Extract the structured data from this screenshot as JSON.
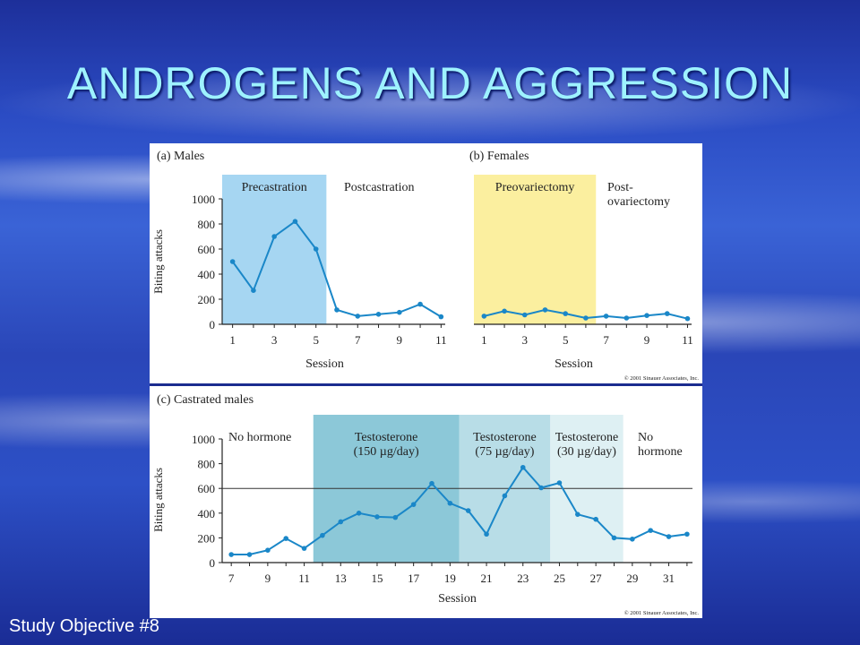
{
  "slide": {
    "title": "ANDROGENS AND AGGRESSION",
    "footer": "Study Objective #8",
    "copyright": "© 2001 Sinauer Associates, Inc."
  },
  "colors": {
    "line": "#1a87c8",
    "precastration_band": "#a6d6f2",
    "preovariectomy_band": "#fbef9f",
    "testosterone150_band": "#8cc8d8",
    "testosterone75_band": "#b8dde7",
    "testosterone30_band": "#def0f3"
  },
  "chart_data": [
    {
      "type": "line",
      "panel_label": "(a)",
      "title": "Males",
      "xlabel": "Session",
      "ylabel": "Biting attacks",
      "x": [
        1,
        2,
        3,
        4,
        5,
        6,
        7,
        8,
        9,
        10,
        11
      ],
      "values": [
        500,
        270,
        700,
        820,
        600,
        115,
        65,
        80,
        95,
        160,
        60
      ],
      "xlim": [
        0.5,
        11.2
      ],
      "ylim": [
        0,
        1000
      ],
      "xticks": [
        1,
        3,
        5,
        7,
        9,
        11
      ],
      "yticks": [
        0,
        200,
        400,
        600,
        800,
        1000
      ],
      "bands": [
        {
          "label": "Precastration",
          "from": 0.5,
          "to": 5.5,
          "color": "#a6d6f2"
        }
      ],
      "region_labels": [
        "Postcastration"
      ]
    },
    {
      "type": "line",
      "panel_label": "(b)",
      "title": "Females",
      "xlabel": "Session",
      "ylabel": "",
      "x": [
        1,
        2,
        3,
        4,
        5,
        6,
        7,
        8,
        9,
        10,
        11
      ],
      "values": [
        65,
        105,
        75,
        115,
        85,
        50,
        65,
        50,
        70,
        85,
        45
      ],
      "xlim": [
        0.5,
        11.2
      ],
      "ylim": [
        0,
        1000
      ],
      "xticks": [
        1,
        3,
        5,
        7,
        9,
        11
      ],
      "yticks": [],
      "bands": [
        {
          "label": "Preovariectomy",
          "from": 0.5,
          "to": 6.5,
          "color": "#fbef9f"
        }
      ],
      "region_labels": [
        "Post-",
        "ovariectomy"
      ]
    },
    {
      "type": "line",
      "panel_label": "(c)",
      "title": "Castrated males",
      "xlabel": "Session",
      "ylabel": "Biting attacks",
      "x": [
        7,
        8,
        9,
        10,
        11,
        12,
        13,
        14,
        15,
        16,
        17,
        18,
        19,
        20,
        21,
        22,
        23,
        24,
        25,
        26,
        27,
        28,
        29,
        30,
        31,
        32
      ],
      "values": [
        65,
        65,
        100,
        195,
        115,
        220,
        330,
        400,
        370,
        365,
        470,
        640,
        480,
        420,
        230,
        540,
        770,
        605,
        645,
        390,
        350,
        200,
        190,
        260,
        210,
        230
      ],
      "xlim": [
        6.5,
        32.3
      ],
      "ylim": [
        0,
        1000
      ],
      "xticks": [
        7,
        9,
        11,
        13,
        15,
        17,
        19,
        21,
        23,
        25,
        27,
        29,
        31
      ],
      "yticks": [
        0,
        200,
        400,
        600,
        800,
        1000
      ],
      "reference_line": 600,
      "bands": [
        {
          "label": [
            "Testosterone",
            "(150 µg/day)"
          ],
          "from": 11.5,
          "to": 19.5,
          "color": "#8cc8d8"
        },
        {
          "label": [
            "Testosterone",
            "(75 µg/day)"
          ],
          "from": 19.5,
          "to": 24.5,
          "color": "#b8dde7"
        },
        {
          "label": [
            "Testosterone",
            "(30 µg/day)"
          ],
          "from": 24.5,
          "to": 28.5,
          "color": "#def0f3"
        }
      ],
      "region_labels": [
        [
          "No hormone"
        ],
        [
          "No",
          "hormone"
        ]
      ]
    }
  ]
}
